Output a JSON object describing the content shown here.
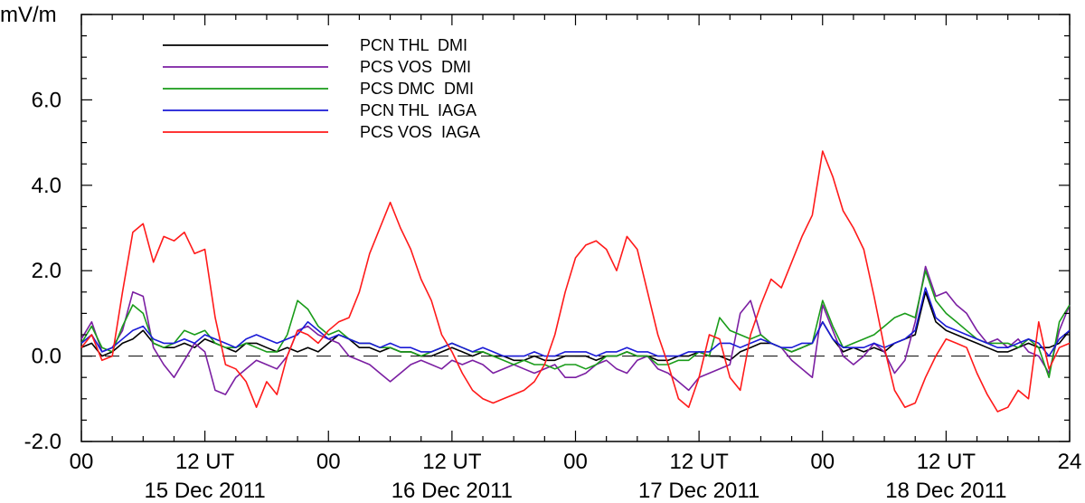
{
  "chart_data": {
    "type": "line",
    "ylabel": "mV/m",
    "xlim": [
      0,
      96
    ],
    "ylim": [
      -2.0,
      8.0
    ],
    "yticks": [
      -2.0,
      0.0,
      2.0,
      4.0,
      6.0
    ],
    "ytick_labels": [
      "-2.0",
      "0.0",
      "2.0",
      "4.0",
      "6.0"
    ],
    "xticks": [
      0,
      12,
      24,
      36,
      48,
      60,
      72,
      84,
      96
    ],
    "xtick_labels": [
      "00",
      "12 UT",
      "00",
      "12 UT",
      "00",
      "12 UT",
      "00",
      "12 UT",
      "24"
    ],
    "date_labels": [
      {
        "day_center_hour": 12,
        "label": "15 Dec 2011"
      },
      {
        "day_center_hour": 36,
        "label": "16 Dec 2011"
      },
      {
        "day_center_hour": 60,
        "label": "17 Dec 2011"
      },
      {
        "day_center_hour": 84,
        "label": "18 Dec 2011"
      }
    ],
    "reference_line": {
      "y": 0.0,
      "style": "dashed"
    },
    "legend_position": "top-left",
    "grid": false,
    "series": [
      {
        "name": "PCN THL  DMI",
        "color": "#000000",
        "x": [
          0,
          1,
          2,
          3,
          4,
          5,
          6,
          7,
          8,
          9,
          10,
          11,
          12,
          13,
          14,
          15,
          16,
          17,
          18,
          19,
          20,
          21,
          22,
          23,
          24,
          25,
          26,
          27,
          28,
          29,
          30,
          31,
          32,
          33,
          34,
          35,
          36,
          37,
          38,
          39,
          40,
          41,
          42,
          43,
          44,
          45,
          46,
          47,
          48,
          49,
          50,
          51,
          52,
          53,
          54,
          55,
          56,
          57,
          58,
          59,
          60,
          61,
          62,
          63,
          64,
          65,
          66,
          67,
          68,
          69,
          70,
          71,
          72,
          73,
          74,
          75,
          76,
          77,
          78,
          79,
          80,
          81,
          82,
          83,
          84,
          85,
          86,
          87,
          88,
          89,
          90,
          91,
          92,
          93,
          94,
          95,
          96
        ],
        "y": [
          0.2,
          0.3,
          0.0,
          0.1,
          0.3,
          0.4,
          0.6,
          0.3,
          0.2,
          0.2,
          0.3,
          0.2,
          0.4,
          0.3,
          0.2,
          0.1,
          0.3,
          0.3,
          0.2,
          0.1,
          0.2,
          0.1,
          0.2,
          0.1,
          0.3,
          0.5,
          0.4,
          0.2,
          0.2,
          0.1,
          0.2,
          0.1,
          0.1,
          0.0,
          0.0,
          0.1,
          0.2,
          0.1,
          0.0,
          0.1,
          0.0,
          0.0,
          -0.1,
          -0.1,
          0.0,
          -0.1,
          -0.1,
          0.0,
          0.0,
          0.0,
          -0.1,
          0.0,
          0.0,
          0.1,
          0.0,
          0.0,
          -0.1,
          -0.1,
          0.0,
          0.0,
          0.1,
          0.0,
          0.0,
          -0.1,
          0.1,
          0.2,
          0.3,
          0.3,
          0.2,
          0.1,
          0.2,
          0.3,
          0.8,
          0.4,
          0.1,
          0.2,
          0.1,
          0.2,
          0.1,
          0.3,
          0.4,
          0.5,
          1.5,
          0.8,
          0.6,
          0.5,
          0.4,
          0.3,
          0.2,
          0.1,
          0.1,
          0.2,
          0.3,
          0.2,
          0.2,
          0.3,
          0.6
        ]
      },
      {
        "name": "PCS VOS  DMI",
        "color": "#7b1fa2",
        "x": [
          0,
          1,
          2,
          3,
          4,
          5,
          6,
          7,
          8,
          9,
          10,
          11,
          12,
          13,
          14,
          15,
          16,
          17,
          18,
          19,
          20,
          21,
          22,
          23,
          24,
          25,
          26,
          27,
          28,
          29,
          30,
          31,
          32,
          33,
          34,
          35,
          36,
          37,
          38,
          39,
          40,
          41,
          42,
          43,
          44,
          45,
          46,
          47,
          48,
          49,
          50,
          51,
          52,
          53,
          54,
          55,
          56,
          57,
          58,
          59,
          60,
          61,
          62,
          63,
          64,
          65,
          66,
          67,
          68,
          69,
          70,
          71,
          72,
          73,
          74,
          75,
          76,
          77,
          78,
          79,
          80,
          81,
          82,
          83,
          84,
          85,
          86,
          87,
          88,
          89,
          90,
          91,
          92,
          93,
          94,
          95,
          96
        ],
        "y": [
          0.4,
          0.8,
          0.1,
          0.2,
          0.6,
          1.5,
          1.4,
          0.2,
          -0.2,
          -0.5,
          -0.1,
          0.3,
          0.1,
          -0.8,
          -0.9,
          -0.5,
          -0.3,
          -0.1,
          -0.2,
          -0.3,
          0.0,
          0.6,
          0.7,
          0.5,
          0.4,
          0.3,
          0.0,
          -0.1,
          -0.2,
          -0.4,
          -0.6,
          -0.4,
          -0.2,
          -0.1,
          -0.2,
          -0.3,
          -0.1,
          -0.2,
          -0.1,
          -0.2,
          -0.4,
          -0.3,
          -0.2,
          -0.3,
          -0.4,
          -0.3,
          -0.2,
          -0.5,
          -0.5,
          -0.4,
          -0.2,
          -0.1,
          -0.3,
          -0.4,
          -0.1,
          0.0,
          -0.3,
          -0.4,
          -0.6,
          -0.8,
          -0.5,
          -0.4,
          -0.3,
          -0.2,
          1.0,
          1.3,
          0.5,
          0.3,
          0.2,
          -0.1,
          -0.3,
          -0.5,
          1.2,
          0.6,
          0.0,
          -0.2,
          0.0,
          0.3,
          0.1,
          -0.4,
          -0.1,
          0.8,
          2.1,
          1.4,
          1.5,
          1.2,
          1.0,
          0.6,
          0.3,
          0.4,
          0.2,
          0.4,
          0.1,
          0.0,
          -0.4,
          0.6,
          1.2
        ]
      },
      {
        "name": "PCS DMC  DMI",
        "color": "#1a9c1a",
        "x": [
          0,
          1,
          2,
          3,
          4,
          5,
          6,
          7,
          8,
          9,
          10,
          11,
          12,
          13,
          14,
          15,
          16,
          17,
          18,
          19,
          20,
          21,
          22,
          23,
          24,
          25,
          26,
          27,
          28,
          29,
          30,
          31,
          32,
          33,
          34,
          35,
          36,
          37,
          38,
          39,
          40,
          41,
          42,
          43,
          44,
          45,
          46,
          47,
          48,
          49,
          50,
          51,
          52,
          53,
          54,
          55,
          56,
          57,
          58,
          59,
          60,
          61,
          62,
          63,
          64,
          65,
          66,
          67,
          68,
          69,
          70,
          71,
          72,
          73,
          74,
          75,
          76,
          77,
          78,
          79,
          80,
          81,
          82,
          83,
          84,
          85,
          86,
          87,
          88,
          89,
          90,
          91,
          92,
          93,
          94,
          95,
          96
        ],
        "y": [
          0.3,
          0.7,
          0.2,
          0.1,
          0.7,
          1.2,
          1.0,
          0.3,
          0.2,
          0.3,
          0.6,
          0.5,
          0.6,
          0.3,
          0.2,
          0.2,
          0.3,
          0.2,
          0.1,
          0.1,
          0.5,
          1.3,
          1.1,
          0.7,
          0.5,
          0.6,
          0.4,
          0.3,
          0.3,
          0.2,
          0.2,
          0.1,
          0.1,
          0.0,
          0.1,
          0.2,
          0.3,
          0.2,
          0.1,
          0.1,
          0.0,
          -0.1,
          -0.2,
          -0.1,
          -0.2,
          -0.2,
          -0.3,
          -0.2,
          -0.2,
          -0.3,
          -0.2,
          0.0,
          0.0,
          0.1,
          0.0,
          0.0,
          -0.2,
          -0.2,
          -0.1,
          -0.1,
          0.1,
          0.0,
          0.9,
          0.6,
          0.5,
          0.4,
          0.5,
          0.3,
          0.2,
          0.1,
          0.2,
          0.3,
          1.3,
          0.7,
          0.2,
          0.3,
          0.4,
          0.5,
          0.7,
          0.9,
          1.0,
          0.9,
          2.0,
          1.3,
          1.0,
          0.8,
          0.6,
          0.4,
          0.3,
          0.3,
          0.3,
          0.2,
          0.4,
          0.2,
          -0.5,
          0.8,
          1.2
        ]
      },
      {
        "name": "PCN THL  IAGA",
        "color": "#1a1ad6",
        "x": [
          0,
          1,
          2,
          3,
          4,
          5,
          6,
          7,
          8,
          9,
          10,
          11,
          12,
          13,
          14,
          15,
          16,
          17,
          18,
          19,
          20,
          21,
          22,
          23,
          24,
          25,
          26,
          27,
          28,
          29,
          30,
          31,
          32,
          33,
          34,
          35,
          36,
          37,
          38,
          39,
          40,
          41,
          42,
          43,
          44,
          45,
          46,
          47,
          48,
          49,
          50,
          51,
          52,
          53,
          54,
          55,
          56,
          57,
          58,
          59,
          60,
          61,
          62,
          63,
          64,
          65,
          66,
          67,
          68,
          69,
          70,
          71,
          72,
          73,
          74,
          75,
          76,
          77,
          78,
          79,
          80,
          81,
          82,
          83,
          84,
          85,
          86,
          87,
          88,
          89,
          90,
          91,
          92,
          93,
          94,
          95,
          96
        ],
        "y": [
          0.3,
          0.5,
          0.1,
          0.2,
          0.4,
          0.6,
          0.7,
          0.4,
          0.3,
          0.3,
          0.4,
          0.3,
          0.5,
          0.4,
          0.3,
          0.2,
          0.4,
          0.5,
          0.4,
          0.3,
          0.4,
          0.5,
          0.8,
          0.6,
          0.4,
          0.5,
          0.4,
          0.3,
          0.3,
          0.2,
          0.3,
          0.2,
          0.2,
          0.1,
          0.1,
          0.2,
          0.3,
          0.2,
          0.1,
          0.2,
          0.1,
          0.0,
          0.0,
          0.0,
          0.1,
          0.0,
          0.0,
          0.1,
          0.1,
          0.1,
          0.0,
          0.1,
          0.1,
          0.2,
          0.1,
          0.1,
          0.0,
          0.0,
          0.0,
          0.1,
          0.1,
          0.1,
          0.3,
          0.3,
          0.2,
          0.3,
          0.4,
          0.3,
          0.2,
          0.2,
          0.3,
          0.3,
          0.8,
          0.4,
          0.2,
          0.2,
          0.2,
          0.3,
          0.2,
          0.3,
          0.4,
          0.6,
          1.6,
          0.9,
          0.7,
          0.6,
          0.5,
          0.4,
          0.3,
          0.2,
          0.2,
          0.3,
          0.4,
          0.3,
          0.0,
          0.4,
          0.6
        ]
      },
      {
        "name": "PCS VOS  IAGA",
        "color": "#ff1a1a",
        "x": [
          0,
          1,
          2,
          3,
          4,
          5,
          6,
          7,
          8,
          9,
          10,
          11,
          12,
          13,
          14,
          15,
          16,
          17,
          18,
          19,
          20,
          21,
          22,
          23,
          24,
          25,
          26,
          27,
          28,
          29,
          30,
          31,
          32,
          33,
          34,
          35,
          36,
          37,
          38,
          39,
          40,
          41,
          42,
          43,
          44,
          45,
          46,
          47,
          48,
          49,
          50,
          51,
          52,
          53,
          54,
          55,
          56,
          57,
          58,
          59,
          60,
          61,
          62,
          63,
          64,
          65,
          66,
          67,
          68,
          69,
          70,
          71,
          72,
          73,
          74,
          75,
          76,
          77,
          78,
          79,
          80,
          81,
          82,
          83,
          84,
          85,
          86,
          87,
          88,
          89,
          90,
          91,
          92,
          93,
          94,
          95,
          96
        ],
        "y": [
          0.2,
          0.5,
          -0.1,
          0.0,
          1.5,
          2.9,
          3.1,
          2.2,
          2.8,
          2.7,
          2.9,
          2.4,
          2.5,
          0.9,
          -0.2,
          -0.3,
          -0.6,
          -1.2,
          -0.6,
          -0.9,
          0.0,
          0.6,
          0.5,
          0.3,
          0.6,
          0.8,
          0.9,
          1.5,
          2.4,
          3.0,
          3.6,
          3.0,
          2.5,
          1.8,
          1.3,
          0.5,
          0.1,
          -0.4,
          -0.8,
          -1.0,
          -1.1,
          -1.0,
          -0.9,
          -0.8,
          -0.6,
          -0.2,
          0.5,
          1.5,
          2.3,
          2.6,
          2.7,
          2.5,
          2.0,
          2.8,
          2.5,
          1.5,
          0.5,
          -0.2,
          -1.0,
          -1.2,
          -0.5,
          0.5,
          0.4,
          -0.5,
          -0.8,
          0.5,
          1.2,
          1.8,
          1.6,
          2.2,
          2.8,
          3.3,
          4.8,
          4.2,
          3.4,
          3.0,
          2.5,
          1.4,
          0.2,
          -0.8,
          -1.2,
          -1.1,
          -0.5,
          0.0,
          0.4,
          0.3,
          0.2,
          -0.4,
          -0.9,
          -1.3,
          -1.2,
          -0.8,
          -1.0,
          0.8,
          -0.3,
          0.2,
          0.3
        ]
      }
    ]
  }
}
